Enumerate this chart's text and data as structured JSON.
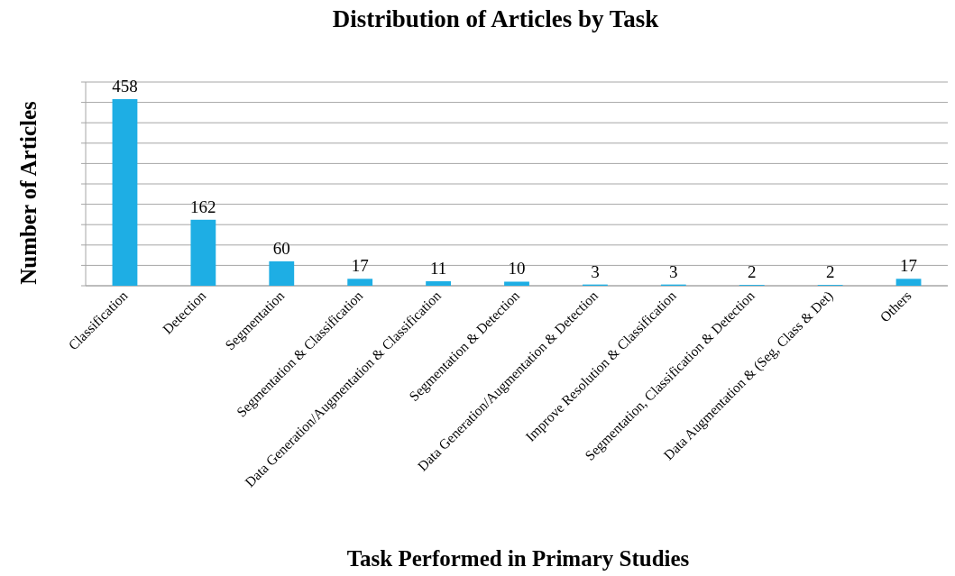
{
  "chart_data": {
    "type": "bar",
    "title": "Distribution of Articles by Task",
    "xlabel": "Task Performed in Primary Studies",
    "ylabel": "Number of Articles",
    "categories": [
      "Classification",
      "Detection",
      "Segmentation",
      "Segmentation & Classification",
      "Data Generation/Augmentation  & Classification",
      "Segmentation & Detection",
      "Data Generation/Augmentation & Detection",
      "Improve Resolution & Classification",
      "Segmentation, Classification & Detection",
      "Data Augmentation & (Seg, Class & Det)",
      "Others"
    ],
    "values": [
      458,
      162,
      60,
      17,
      11,
      10,
      3,
      3,
      2,
      2,
      17
    ],
    "color": "#1eaee4",
    "ylim": [
      0,
      500
    ],
    "yticks": [
      {
        "value": 0,
        "label": null
      },
      {
        "value": 50,
        "label": null
      },
      {
        "value": 100,
        "label": null
      },
      {
        "value": 150,
        "label": null
      },
      {
        "value": 200,
        "label": null
      },
      {
        "value": 250,
        "label": null
      },
      {
        "value": 300,
        "label": null
      },
      {
        "value": 350,
        "label": null
      },
      {
        "value": 400,
        "label": null
      },
      {
        "value": 450,
        "label": null
      },
      {
        "value": 500,
        "label": null
      }
    ],
    "tick_labels": "x",
    "grid": "y",
    "data_labels": true
  }
}
